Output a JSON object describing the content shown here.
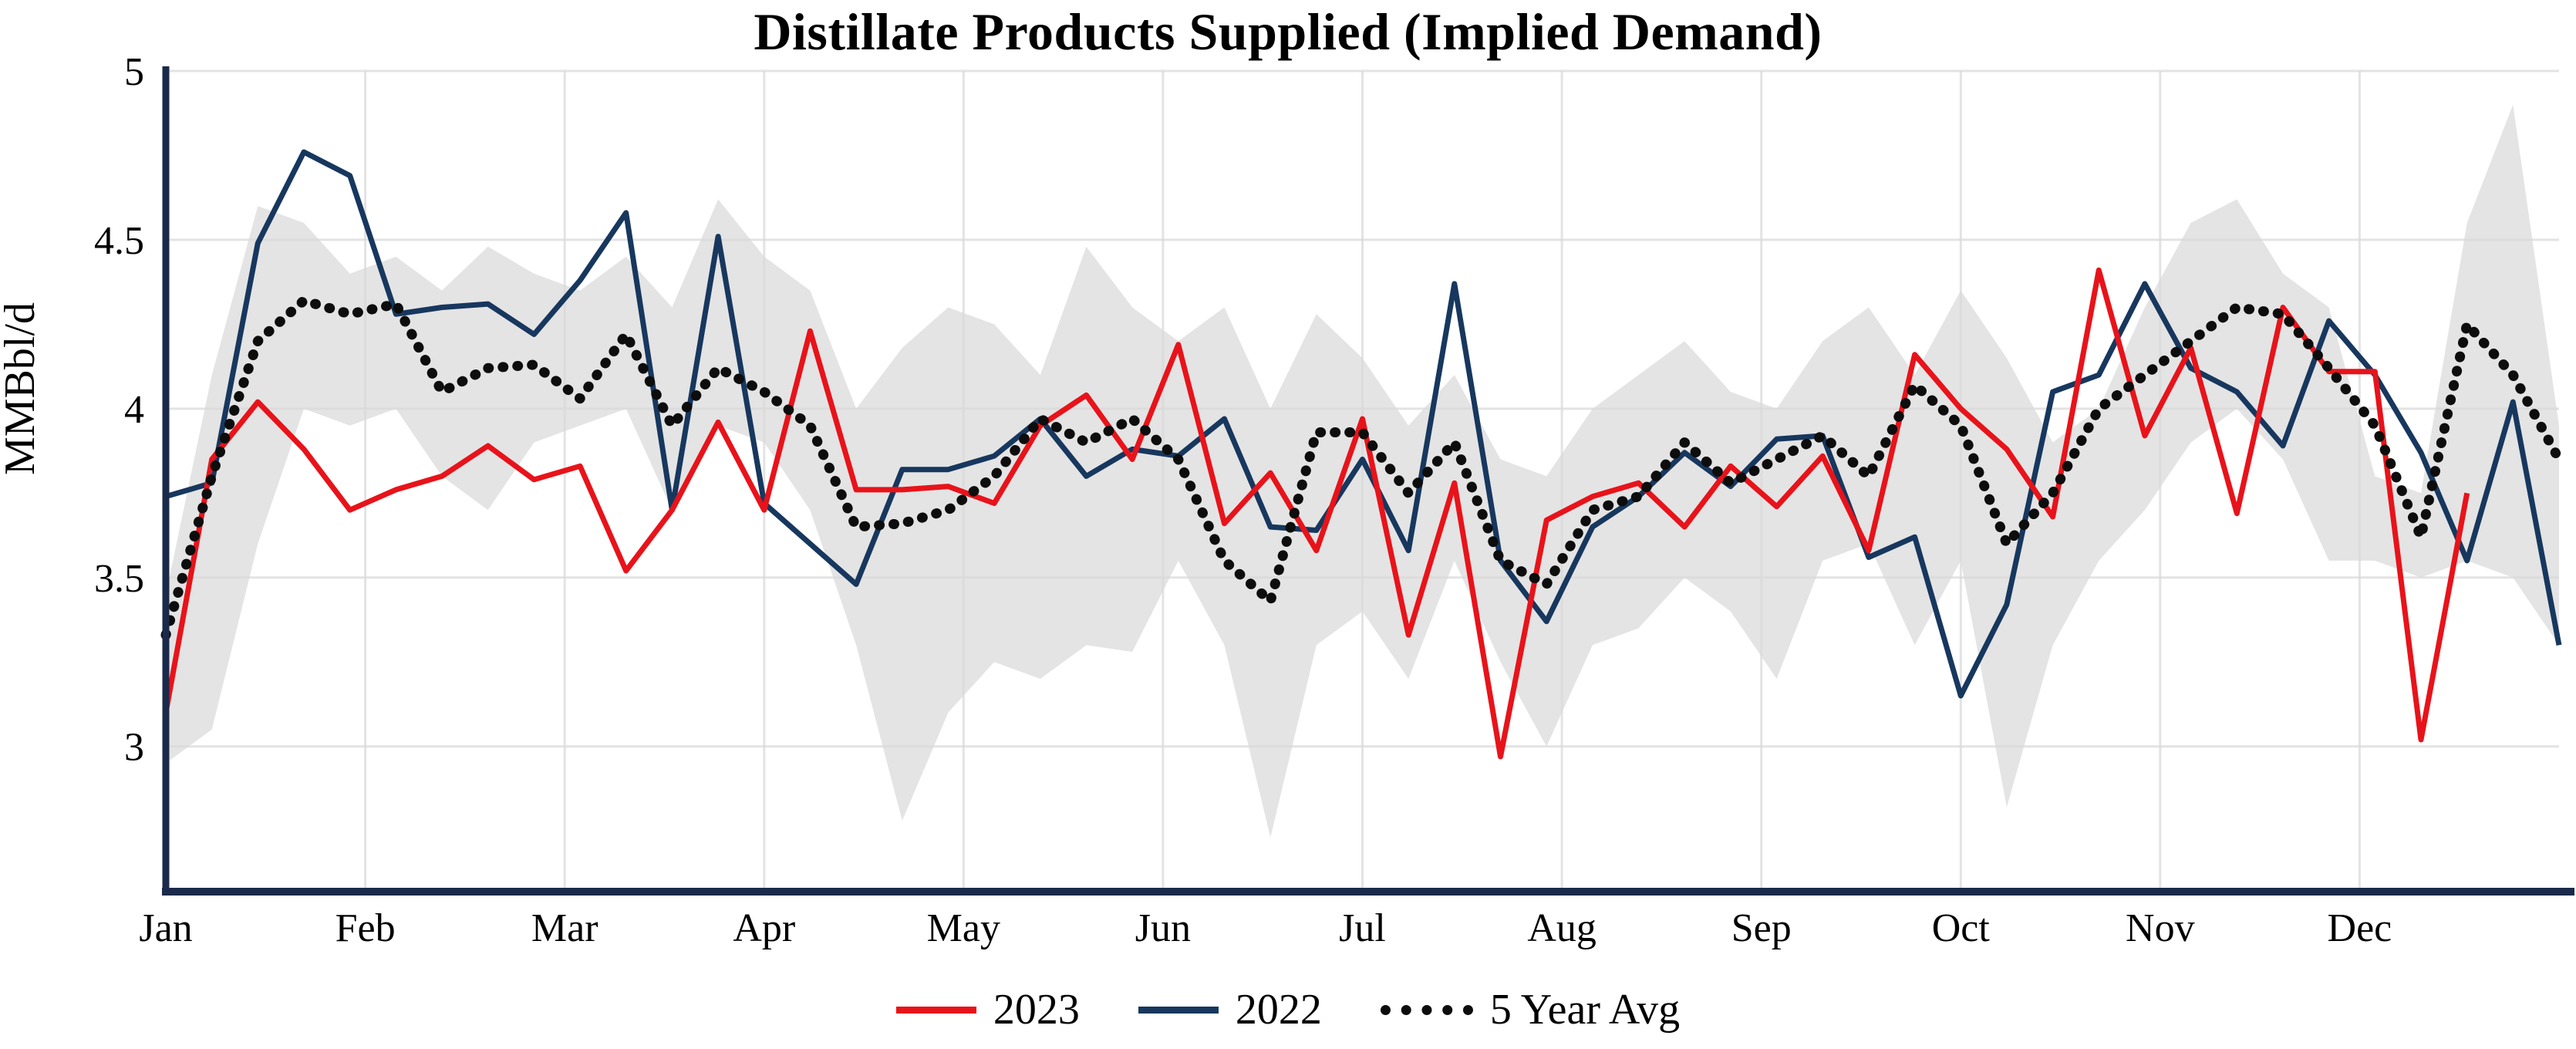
{
  "chart_data": {
    "type": "line",
    "title": "Distillate Products Supplied (Implied Demand)",
    "ylabel": "MMBbl/d",
    "x_axis": {
      "months": [
        "Jan",
        "Feb",
        "Mar",
        "Apr",
        "May",
        "Jun",
        "Jul",
        "Aug",
        "Sep",
        "Oct",
        "Nov",
        "Dec"
      ],
      "unit": "week",
      "points": 53
    },
    "y_axis": {
      "ticks": [
        3,
        3.5,
        4,
        4.5,
        5
      ],
      "tick_labels": [
        "3",
        "3.5",
        "4",
        "4.5",
        "5"
      ],
      "range": [
        2.57,
        5.0
      ]
    },
    "grid": true,
    "legend_position": "bottom",
    "colors": {
      "axis": "#1b2a4a",
      "grid": "#d9d9d9",
      "band": "#e2e2e2",
      "series_2023": "#e8131a",
      "series_2022": "#17375e",
      "series_avg": "#0d0d0d"
    },
    "band": {
      "upper": [
        3.45,
        4.1,
        4.6,
        4.55,
        4.4,
        4.45,
        4.35,
        4.48,
        4.4,
        4.35,
        4.45,
        4.3,
        4.62,
        4.45,
        4.35,
        4.0,
        4.18,
        4.3,
        4.25,
        4.1,
        4.48,
        4.3,
        4.2,
        4.3,
        4.0,
        4.28,
        4.15,
        3.95,
        4.1,
        3.85,
        3.8,
        4.0,
        4.1,
        4.2,
        4.05,
        4.0,
        4.2,
        4.3,
        4.1,
        4.35,
        4.15,
        3.9,
        4.0,
        4.3,
        4.55,
        4.62,
        4.4,
        4.3,
        3.8,
        3.75,
        4.55,
        4.9,
        3.95
      ],
      "lower": [
        2.95,
        3.05,
        3.6,
        4.0,
        3.95,
        4.0,
        3.8,
        3.7,
        3.9,
        3.95,
        4.0,
        3.7,
        3.95,
        3.9,
        3.7,
        3.3,
        2.78,
        3.1,
        3.25,
        3.2,
        3.3,
        3.28,
        3.55,
        3.3,
        2.73,
        3.3,
        3.4,
        3.2,
        3.55,
        3.25,
        3.0,
        3.3,
        3.35,
        3.5,
        3.4,
        3.2,
        3.55,
        3.6,
        3.3,
        3.55,
        2.82,
        3.3,
        3.55,
        3.7,
        3.9,
        4.0,
        3.85,
        3.55,
        3.55,
        3.5,
        3.55,
        3.5,
        3.3
      ]
    },
    "series": [
      {
        "name": "2023",
        "style": "solid",
        "color": "#e8131a",
        "values": [
          3.1,
          3.85,
          4.02,
          3.88,
          3.7,
          3.76,
          3.8,
          3.89,
          3.79,
          3.83,
          3.52,
          3.7,
          3.96,
          3.7,
          4.23,
          3.76,
          3.76,
          3.77,
          3.72,
          3.95,
          4.04,
          3.85,
          4.19,
          3.66,
          3.81,
          3.58,
          3.97,
          3.33,
          3.78,
          2.97,
          3.67,
          3.74,
          3.78,
          3.65,
          3.83,
          3.71,
          3.86,
          3.58,
          4.16,
          4.0,
          3.88,
          3.68,
          4.41,
          3.92,
          4.18,
          3.69,
          4.3,
          4.11,
          4.11,
          3.02,
          3.75,
          null,
          null
        ]
      },
      {
        "name": "2022",
        "style": "solid",
        "color": "#17375e",
        "values": [
          3.74,
          3.78,
          4.49,
          4.76,
          4.69,
          4.28,
          4.3,
          4.31,
          4.22,
          4.38,
          4.58,
          3.7,
          4.51,
          3.72,
          3.6,
          3.48,
          3.82,
          3.82,
          3.86,
          3.97,
          3.8,
          3.88,
          3.86,
          3.97,
          3.65,
          3.64,
          3.85,
          3.58,
          4.37,
          3.55,
          3.37,
          3.65,
          3.74,
          3.87,
          3.77,
          3.91,
          3.92,
          3.56,
          3.62,
          3.15,
          3.42,
          4.05,
          4.1,
          4.37,
          4.12,
          4.05,
          3.89,
          4.26,
          4.1,
          3.87,
          3.55,
          4.02,
          3.3
        ]
      },
      {
        "name": "5 Year Avg",
        "style": "dotted",
        "color": "#0d0d0d",
        "values": [
          3.33,
          3.8,
          4.2,
          4.32,
          4.28,
          4.31,
          4.05,
          4.12,
          4.13,
          4.03,
          4.22,
          3.95,
          4.12,
          4.05,
          3.95,
          3.65,
          3.66,
          3.7,
          3.8,
          3.97,
          3.9,
          3.97,
          3.85,
          3.55,
          3.43,
          3.93,
          3.93,
          3.75,
          3.9,
          3.55,
          3.48,
          3.7,
          3.74,
          3.9,
          3.78,
          3.85,
          3.92,
          3.8,
          4.07,
          3.95,
          3.6,
          3.75,
          4.0,
          4.1,
          4.2,
          4.3,
          4.28,
          4.12,
          3.95,
          3.62,
          4.25,
          4.1,
          3.85
        ]
      }
    ]
  }
}
